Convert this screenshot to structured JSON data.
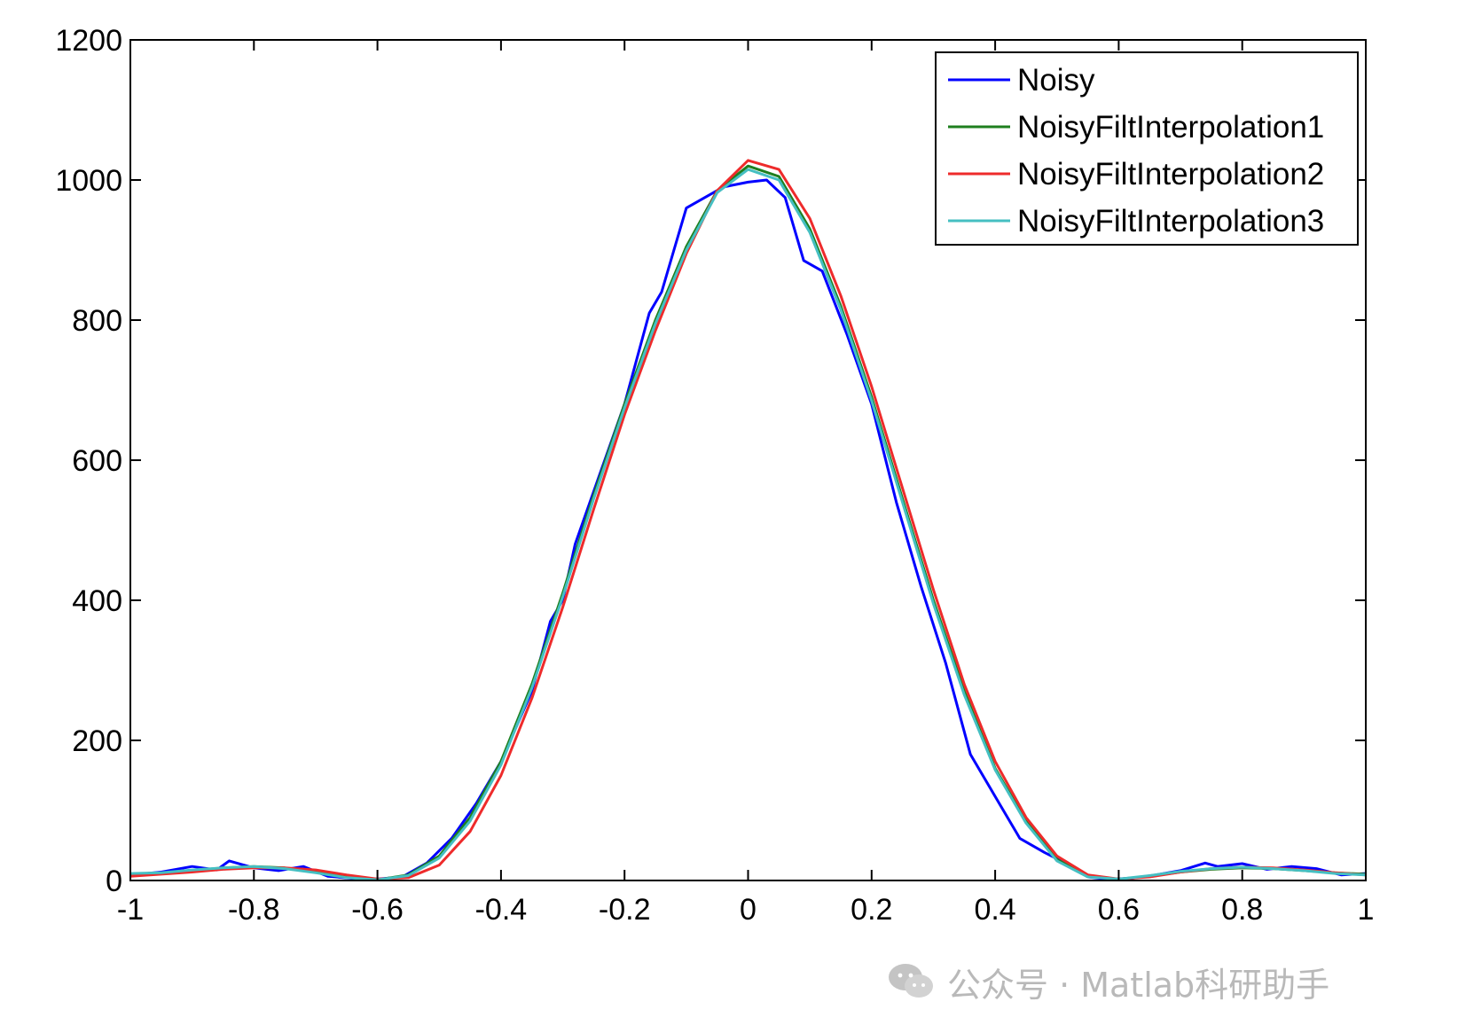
{
  "chart_data": {
    "type": "line",
    "title": "",
    "xlabel": "",
    "ylabel": "",
    "xlim": [
      -1,
      1
    ],
    "ylim": [
      0,
      1200
    ],
    "xticks": [
      "-1",
      "-0.8",
      "-0.6",
      "-0.4",
      "-0.2",
      "0",
      "0.2",
      "0.4",
      "0.6",
      "0.8",
      "1"
    ],
    "yticks": [
      "0",
      "200",
      "400",
      "600",
      "800",
      "1000",
      "1200"
    ],
    "grid": false,
    "legend_position": "top-right",
    "series": [
      {
        "name": "Noisy",
        "color": "#0000ff",
        "x": [
          -1.0,
          -0.95,
          -0.9,
          -0.86,
          -0.84,
          -0.8,
          -0.76,
          -0.72,
          -0.68,
          -0.64,
          -0.6,
          -0.56,
          -0.52,
          -0.48,
          -0.44,
          -0.4,
          -0.38,
          -0.35,
          -0.32,
          -0.3,
          -0.28,
          -0.24,
          -0.2,
          -0.16,
          -0.14,
          -0.12,
          -0.1,
          -0.08,
          -0.04,
          0.0,
          0.03,
          0.06,
          0.09,
          0.12,
          0.16,
          0.2,
          0.24,
          0.28,
          0.32,
          0.36,
          0.4,
          0.44,
          0.48,
          0.52,
          0.55,
          0.58,
          0.62,
          0.66,
          0.7,
          0.74,
          0.76,
          0.8,
          0.84,
          0.88,
          0.92,
          0.96,
          1.0
        ],
        "y": [
          8,
          12,
          20,
          15,
          28,
          18,
          14,
          20,
          6,
          3,
          2,
          5,
          25,
          60,
          110,
          170,
          210,
          270,
          370,
          400,
          480,
          580,
          680,
          810,
          840,
          900,
          960,
          970,
          990,
          997,
          1000,
          975,
          885,
          870,
          780,
          680,
          540,
          420,
          310,
          180,
          120,
          60,
          40,
          22,
          5,
          2,
          3,
          8,
          14,
          25,
          20,
          24,
          16,
          20,
          17,
          8,
          10
        ]
      },
      {
        "name": "NoisyFiltInterpolation1",
        "color": "#1e7f1e",
        "x": [
          -1.0,
          -0.95,
          -0.9,
          -0.85,
          -0.8,
          -0.75,
          -0.7,
          -0.65,
          -0.6,
          -0.55,
          -0.5,
          -0.45,
          -0.4,
          -0.35,
          -0.3,
          -0.25,
          -0.2,
          -0.15,
          -0.1,
          -0.05,
          0.0,
          0.05,
          0.1,
          0.15,
          0.2,
          0.25,
          0.3,
          0.35,
          0.4,
          0.45,
          0.5,
          0.55,
          0.6,
          0.65,
          0.7,
          0.75,
          0.8,
          0.85,
          0.9,
          0.95,
          1.0
        ],
        "y": [
          8,
          10,
          14,
          18,
          20,
          18,
          12,
          5,
          1,
          8,
          35,
          90,
          170,
          280,
          410,
          550,
          680,
          800,
          905,
          985,
          1020,
          1005,
          930,
          820,
          690,
          545,
          400,
          270,
          160,
          85,
          30,
          6,
          2,
          6,
          12,
          16,
          18,
          17,
          14,
          11,
          9
        ]
      },
      {
        "name": "NoisyFiltInterpolation2",
        "color": "#ee2b2b",
        "x": [
          -1.0,
          -0.95,
          -0.9,
          -0.85,
          -0.8,
          -0.75,
          -0.7,
          -0.65,
          -0.6,
          -0.55,
          -0.5,
          -0.45,
          -0.4,
          -0.35,
          -0.3,
          -0.25,
          -0.2,
          -0.15,
          -0.1,
          -0.05,
          0.0,
          0.05,
          0.1,
          0.15,
          0.2,
          0.25,
          0.3,
          0.35,
          0.4,
          0.45,
          0.5,
          0.55,
          0.6,
          0.65,
          0.7,
          0.75,
          0.8,
          0.85,
          0.9,
          0.95,
          1.0
        ],
        "y": [
          6,
          9,
          12,
          16,
          18,
          18,
          15,
          8,
          2,
          4,
          22,
          70,
          150,
          260,
          390,
          530,
          665,
          785,
          895,
          985,
          1028,
          1015,
          945,
          835,
          705,
          560,
          415,
          280,
          170,
          90,
          35,
          8,
          2,
          5,
          12,
          17,
          19,
          18,
          15,
          11,
          8
        ]
      },
      {
        "name": "NoisyFiltInterpolation3",
        "color": "#45bfc2",
        "x": [
          -1.0,
          -0.95,
          -0.9,
          -0.85,
          -0.8,
          -0.75,
          -0.7,
          -0.65,
          -0.6,
          -0.55,
          -0.5,
          -0.45,
          -0.4,
          -0.35,
          -0.3,
          -0.25,
          -0.2,
          -0.15,
          -0.1,
          -0.05,
          0.0,
          0.05,
          0.1,
          0.15,
          0.2,
          0.25,
          0.3,
          0.35,
          0.4,
          0.45,
          0.5,
          0.55,
          0.6,
          0.65,
          0.7,
          0.75,
          0.8,
          0.85,
          0.9,
          0.95,
          1.0
        ],
        "y": [
          10,
          11,
          15,
          18,
          20,
          17,
          11,
          4,
          1,
          7,
          32,
          85,
          165,
          275,
          405,
          545,
          675,
          795,
          900,
          982,
          1015,
          1000,
          925,
          815,
          685,
          540,
          395,
          265,
          158,
          82,
          28,
          5,
          2,
          7,
          13,
          17,
          19,
          17,
          14,
          10,
          8
        ]
      }
    ]
  },
  "watermark": {
    "text": "公众号 · Matlab科研助手",
    "icon": "wechat-icon"
  }
}
